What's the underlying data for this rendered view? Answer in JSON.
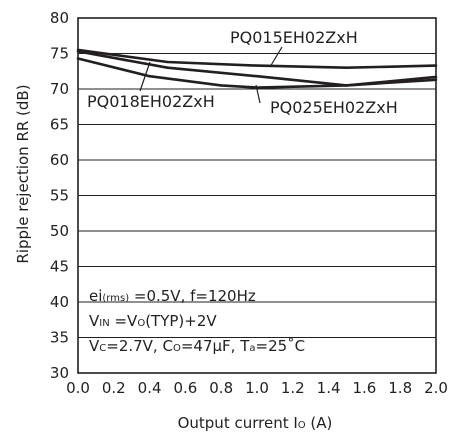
{
  "chart_data": {
    "type": "line",
    "title": "",
    "xlabel": {
      "main": "Output current  I",
      "sub": "O",
      "unit": " (A)"
    },
    "ylabel": "Ripple rejection RR (dB)",
    "xlim": [
      0.0,
      2.0
    ],
    "ylim": [
      30,
      80
    ],
    "x_ticks": [
      "0.0",
      "0.2",
      "0.4",
      "0.6",
      "0.8",
      "1.0",
      "1.2",
      "1.4",
      "1.6",
      "1.8",
      "2.0"
    ],
    "y_ticks": [
      "30",
      "35",
      "40",
      "45",
      "50",
      "55",
      "60",
      "65",
      "70",
      "75",
      "80"
    ],
    "grid": true,
    "series": [
      {
        "name": "PQ015EH02ZxH",
        "x": [
          0.0,
          0.5,
          1.0,
          1.5,
          2.0
        ],
        "y": [
          75.5,
          73.8,
          73.3,
          73.0,
          73.3
        ]
      },
      {
        "name": "PQ025EH02ZxH",
        "x": [
          0.0,
          0.5,
          1.0,
          1.5,
          2.0
        ],
        "y": [
          75.3,
          73.0,
          71.8,
          70.5,
          71.7
        ]
      },
      {
        "name": "PQ018EH02ZxH",
        "x": [
          0.0,
          0.4,
          0.8,
          1.0,
          1.5,
          2.0
        ],
        "y": [
          74.3,
          71.8,
          70.5,
          70.2,
          70.5,
          71.3
        ]
      }
    ],
    "annotations": [
      [
        {
          "t": "ei",
          "sub": false
        },
        {
          "t": "(rms)",
          "sub": true
        },
        {
          "t": " =0.5V, f=120Hz",
          "sub": false
        }
      ],
      [
        {
          "t": "V",
          "sub": false
        },
        {
          "t": "IN",
          "sub": true
        },
        {
          "t": " =V",
          "sub": false
        },
        {
          "t": "O",
          "sub": true
        },
        {
          "t": "(TYP)+2V",
          "sub": false
        }
      ],
      [
        {
          "t": "V",
          "sub": false
        },
        {
          "t": "C",
          "sub": true
        },
        {
          "t": "=2.7V, C",
          "sub": false
        },
        {
          "t": "O",
          "sub": true
        },
        {
          "t": "=47µF, T",
          "sub": false
        },
        {
          "t": "a",
          "sub": true
        },
        {
          "t": "=25˚C",
          "sub": false
        }
      ]
    ]
  }
}
